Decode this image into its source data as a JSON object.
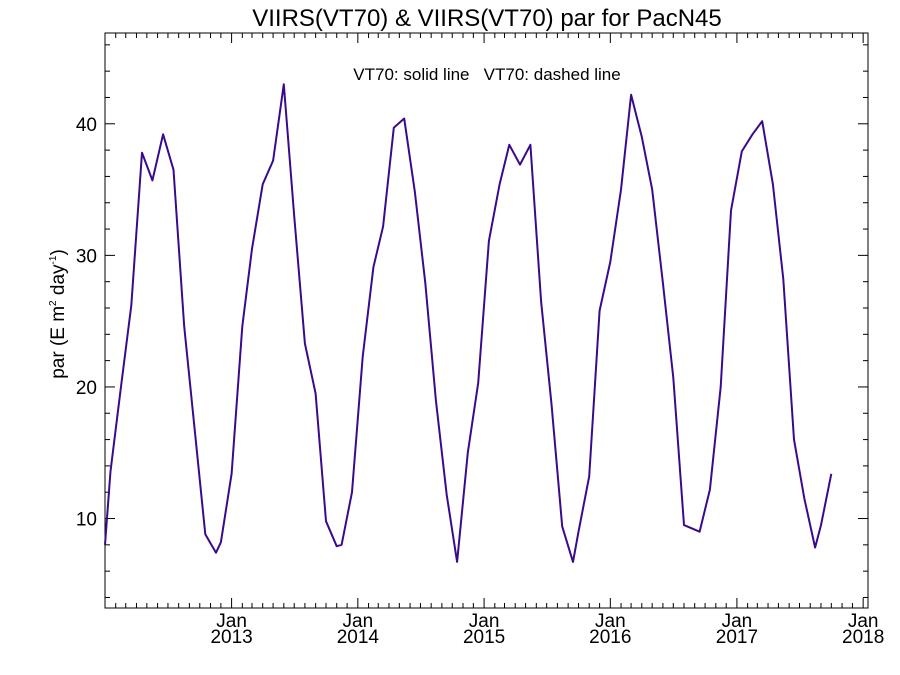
{
  "chart_data": {
    "type": "line",
    "title": "VIIRS(VT70) & VIIRS(VT70)  par for PacN45",
    "legend_text": "VT70: solid line   VT70: dashed line",
    "ylabel": {
      "main": "par (E m",
      "sup1": "2",
      "mid": " day",
      "sup2": "-1",
      "end": ")"
    },
    "ylim": [
      3.2,
      46.9
    ],
    "xlim": [
      "2012-01-01",
      "2018-01-15"
    ],
    "y_ticks": [
      10,
      20,
      30,
      40
    ],
    "x_ticks": [
      {
        "date": "2013-01-01",
        "line1": "Jan",
        "line2": "2013"
      },
      {
        "date": "2014-01-01",
        "line1": "Jan",
        "line2": "2014"
      },
      {
        "date": "2015-01-01",
        "line1": "Jan",
        "line2": "2015"
      },
      {
        "date": "2016-01-01",
        "line1": "Jan",
        "line2": "2016"
      },
      {
        "date": "2017-01-01",
        "line1": "Jan",
        "line2": "2017"
      },
      {
        "date": "2018-01-01",
        "line1": "Jan",
        "line2": "2018"
      }
    ],
    "grid": false,
    "line_color": "#3a0a8c",
    "series": [
      {
        "style": "solid",
        "points": [
          [
            "2012-01-01",
            8.0
          ],
          [
            "2012-01-17",
            13.6
          ],
          [
            "2012-02-17",
            20.2
          ],
          [
            "2012-03-17",
            26.2
          ],
          [
            "2012-04-17",
            37.8
          ],
          [
            "2012-05-17",
            35.7
          ],
          [
            "2012-06-17",
            39.2
          ],
          [
            "2012-07-17",
            36.5
          ],
          [
            "2012-08-17",
            24.6
          ],
          [
            "2012-09-17",
            16.6
          ],
          [
            "2012-10-17",
            8.8
          ],
          [
            "2012-11-17",
            7.4
          ],
          [
            "2012-12-01",
            8.2
          ],
          [
            "2013-01-01",
            13.4
          ],
          [
            "2013-02-01",
            24.6
          ],
          [
            "2013-03-01",
            30.5
          ],
          [
            "2013-04-01",
            35.4
          ],
          [
            "2013-05-01",
            37.2
          ],
          [
            "2013-06-01",
            43.0
          ],
          [
            "2013-07-01",
            33.0
          ],
          [
            "2013-08-01",
            23.3
          ],
          [
            "2013-09-01",
            19.5
          ],
          [
            "2013-10-01",
            9.8
          ],
          [
            "2013-11-01",
            7.9
          ],
          [
            "2013-11-15",
            8.0
          ],
          [
            "2013-12-15",
            12.0
          ],
          [
            "2014-01-15",
            22.3
          ],
          [
            "2014-02-15",
            29.1
          ],
          [
            "2014-03-15",
            32.2
          ],
          [
            "2014-04-15",
            39.7
          ],
          [
            "2014-05-15",
            40.4
          ],
          [
            "2014-06-15",
            34.8
          ],
          [
            "2014-07-15",
            27.9
          ],
          [
            "2014-08-15",
            18.9
          ],
          [
            "2014-09-15",
            11.8
          ],
          [
            "2014-10-15",
            6.7
          ],
          [
            "2014-11-15",
            15.0
          ],
          [
            "2014-12-15",
            20.3
          ],
          [
            "2015-01-15",
            31.1
          ],
          [
            "2015-02-15",
            35.4
          ],
          [
            "2015-03-15",
            38.4
          ],
          [
            "2015-04-15",
            36.9
          ],
          [
            "2015-05-15",
            38.4
          ],
          [
            "2015-06-15",
            26.5
          ],
          [
            "2015-07-15",
            18.7
          ],
          [
            "2015-08-15",
            9.4
          ],
          [
            "2015-09-15",
            6.7
          ],
          [
            "2015-10-01",
            9.0
          ],
          [
            "2015-11-01",
            13.2
          ],
          [
            "2015-12-01",
            25.8
          ],
          [
            "2016-01-01",
            29.5
          ],
          [
            "2016-02-01",
            35.0
          ],
          [
            "2016-03-01",
            42.2
          ],
          [
            "2016-04-01",
            39.0
          ],
          [
            "2016-05-01",
            35.0
          ],
          [
            "2016-06-01",
            27.9
          ],
          [
            "2016-07-01",
            20.7
          ],
          [
            "2016-08-01",
            9.5
          ],
          [
            "2016-09-15",
            9.0
          ],
          [
            "2016-10-15",
            12.2
          ],
          [
            "2016-11-15",
            20.0
          ],
          [
            "2016-12-15",
            33.4
          ],
          [
            "2017-01-15",
            37.9
          ],
          [
            "2017-02-15",
            39.2
          ],
          [
            "2017-03-15",
            40.2
          ],
          [
            "2017-04-15",
            35.4
          ],
          [
            "2017-05-15",
            28.2
          ],
          [
            "2017-06-15",
            16.0
          ],
          [
            "2017-07-15",
            11.5
          ],
          [
            "2017-08-15",
            7.8
          ],
          [
            "2017-09-01",
            9.5
          ],
          [
            "2017-10-01",
            13.4
          ]
        ]
      }
    ]
  }
}
